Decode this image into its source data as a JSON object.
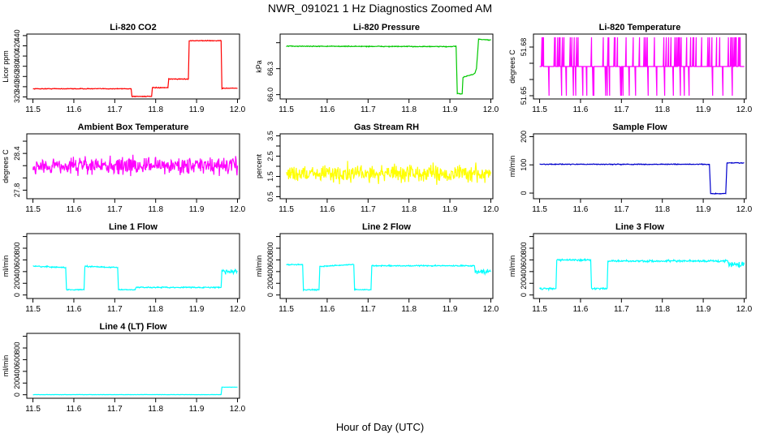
{
  "page": {
    "title": "NWR_091021  1 Hz Diagnostics Zoomed AM",
    "xlabel": "Hour of Day (UTC)"
  },
  "chart_data": [
    {
      "type": "line",
      "title": "Li-820 CO2",
      "ylabel": "Licor ppm",
      "color": "#ff0000",
      "xlim": [
        11.485,
        12.005
      ],
      "ylim": [
        316,
        443
      ],
      "xticks": [
        "11.5",
        "11.6",
        "11.7",
        "11.8",
        "11.9",
        "12.0"
      ],
      "yticks": [
        320,
        340,
        360,
        380,
        400,
        420,
        440
      ],
      "x": [
        11.5,
        11.74,
        11.742,
        11.79,
        11.792,
        11.83,
        11.832,
        11.88,
        11.882,
        11.96,
        11.962,
        12.0
      ],
      "y": [
        336,
        336,
        321,
        321,
        338,
        338,
        355,
        355,
        430,
        430,
        337,
        337
      ],
      "noise": 0.6
    },
    {
      "type": "line",
      "title": "Li-820 Pressure",
      "ylabel": "kPa",
      "color": "#00c800",
      "xlim": [
        11.485,
        12.005
      ],
      "ylim": [
        65.95,
        66.7
      ],
      "xticks": [
        "11.5",
        "11.6",
        "11.7",
        "11.8",
        "11.9",
        "12.0"
      ],
      "yticks": [
        66.0,
        66.3,
        66.6
      ],
      "yticklabels": [
        "66.0",
        "66.3",
        ""
      ],
      "x": [
        11.5,
        11.9,
        11.915,
        11.918,
        11.93,
        11.932,
        11.96,
        11.965,
        11.97,
        12.0
      ],
      "y": [
        66.56,
        66.555,
        66.56,
        66.01,
        66.01,
        66.2,
        66.24,
        66.3,
        66.64,
        66.63
      ],
      "noise": 0.004
    },
    {
      "type": "line",
      "title": "Li-820 Temperature",
      "ylabel": "degrees C",
      "color": "#ff00ff",
      "xlim": [
        11.485,
        12.005
      ],
      "ylim": [
        51.648,
        51.688
      ],
      "xticks": [
        "11.5",
        "11.6",
        "11.7",
        "11.8",
        "11.9",
        "12.0"
      ],
      "yticks": [
        51.65,
        51.66,
        51.67,
        51.68
      ],
      "yticklabels": [
        "51.65",
        "",
        "",
        "51.68"
      ],
      "x": [
        11.5,
        12.0
      ],
      "y": [
        51.668,
        51.668
      ],
      "spike_high": 51.686,
      "spike_low": 51.65
    },
    {
      "type": "line",
      "title": "Ambient Box Temperature",
      "ylabel": "degrees C",
      "color": "#ff00ff",
      "xlim": [
        11.485,
        12.005
      ],
      "ylim": [
        27.66,
        28.72
      ],
      "xticks": [
        "11.5",
        "11.6",
        "11.7",
        "11.8",
        "11.9",
        "12.0"
      ],
      "yticks": [
        27.8,
        28.0,
        28.2,
        28.4,
        28.6
      ],
      "yticklabels": [
        "27.8",
        "",
        "",
        "28.4",
        ""
      ],
      "x": [
        11.5,
        12.0
      ],
      "y": [
        28.2,
        28.2
      ],
      "noise": 0.12
    },
    {
      "type": "line",
      "title": "Gas Stream RH",
      "ylabel": "percent",
      "color": "#ffff00",
      "xlim": [
        11.485,
        12.005
      ],
      "ylim": [
        0.4,
        3.6
      ],
      "xticks": [
        "11.5",
        "11.6",
        "11.7",
        "11.8",
        "11.9",
        "12.0"
      ],
      "yticks": [
        0.5,
        1.0,
        1.5,
        2.0,
        2.5,
        3.0,
        3.5
      ],
      "yticklabels": [
        "0.5",
        "",
        "1.5",
        "",
        "2.5",
        "",
        "3.5"
      ],
      "x": [
        11.5,
        12.0
      ],
      "y": [
        1.65,
        1.65
      ],
      "noise": 0.35
    },
    {
      "type": "line",
      "title": "Sample Flow",
      "ylabel": "ml/min",
      "color": "#0000cc",
      "xlim": [
        11.485,
        12.005
      ],
      "ylim": [
        -20,
        210
      ],
      "xticks": [
        "11.5",
        "11.6",
        "11.7",
        "11.8",
        "11.9",
        "12.0"
      ],
      "yticks": [
        0,
        100,
        200
      ],
      "x": [
        11.5,
        11.915,
        11.918,
        11.955,
        11.958,
        12.0
      ],
      "y": [
        102,
        102,
        -2,
        -2,
        107,
        107
      ],
      "noise": 1.2
    },
    {
      "type": "line",
      "title": "Line 1 Flow",
      "ylabel": "ml/min",
      "color": "#00ffff",
      "xlim": [
        11.485,
        12.005
      ],
      "ylim": [
        -60,
        1050
      ],
      "xticks": [
        "11.5",
        "11.6",
        "11.7",
        "11.8",
        "11.9",
        "12.0"
      ],
      "yticks": [
        0,
        200,
        400,
        600,
        800,
        1000
      ],
      "yticklabels": [
        "0",
        "200",
        "400",
        "600",
        "800",
        ""
      ],
      "x": [
        11.5,
        11.58,
        11.582,
        11.625,
        11.627,
        11.707,
        11.709,
        11.75,
        11.752,
        11.96,
        11.962,
        12.0
      ],
      "y": [
        490,
        470,
        90,
        90,
        490,
        470,
        90,
        90,
        130,
        130,
        400,
        400
      ],
      "noise": 8,
      "noise_end": 40
    },
    {
      "type": "line",
      "title": "Line 2 Flow",
      "ylabel": "ml/min",
      "color": "#00ffff",
      "xlim": [
        11.485,
        12.005
      ],
      "ylim": [
        -60,
        1050
      ],
      "xticks": [
        "11.5",
        "11.6",
        "11.7",
        "11.8",
        "11.9",
        "12.0"
      ],
      "yticks": [
        0,
        200,
        400,
        600,
        800,
        1000
      ],
      "yticklabels": [
        "0",
        "200",
        "400",
        "600",
        "800",
        ""
      ],
      "x": [
        11.5,
        11.54,
        11.542,
        11.58,
        11.582,
        11.665,
        11.667,
        11.707,
        11.709,
        11.96,
        11.962,
        12.0
      ],
      "y": [
        520,
        520,
        90,
        90,
        490,
        520,
        90,
        90,
        500,
        500,
        400,
        400
      ],
      "noise": 8,
      "noise_end": 40
    },
    {
      "type": "line",
      "title": "Line 3 Flow",
      "ylabel": "ml/min",
      "color": "#00ffff",
      "xlim": [
        11.485,
        12.005
      ],
      "ylim": [
        -60,
        1050
      ],
      "xticks": [
        "11.5",
        "11.6",
        "11.7",
        "11.8",
        "11.9",
        "12.0"
      ],
      "yticks": [
        0,
        200,
        400,
        600,
        800,
        1000
      ],
      "yticklabels": [
        "0",
        "200",
        "400",
        "600",
        "800",
        ""
      ],
      "x": [
        11.5,
        11.54,
        11.542,
        11.625,
        11.627,
        11.665,
        11.667,
        11.96,
        11.962,
        12.0
      ],
      "y": [
        110,
        110,
        600,
        600,
        110,
        110,
        580,
        580,
        520,
        520
      ],
      "noise": 14,
      "noise_end": 35
    },
    {
      "type": "line",
      "title": "Line 4 (LT) Flow",
      "ylabel": "ml/min",
      "color": "#00ffff",
      "xlim": [
        11.485,
        12.005
      ],
      "ylim": [
        -60,
        1050
      ],
      "xticks": [
        "11.5",
        "11.6",
        "11.7",
        "11.8",
        "11.9",
        "12.0"
      ],
      "yticks": [
        0,
        200,
        400,
        600,
        800,
        1000
      ],
      "yticklabels": [
        "0",
        "200",
        "400",
        "600",
        "800",
        ""
      ],
      "x": [
        11.5,
        11.96,
        11.962,
        12.0
      ],
      "y": [
        2,
        2,
        130,
        130
      ],
      "noise": 2
    }
  ]
}
